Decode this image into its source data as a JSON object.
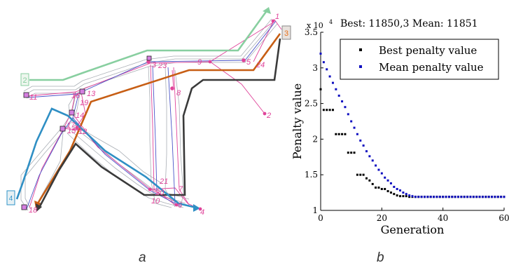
{
  "panel_labels": {
    "a": "a",
    "b": "b"
  },
  "diagram": {
    "zones": [
      {
        "label": "2",
        "color": "#88cfa0"
      },
      {
        "label": "3",
        "color": "#e8701a"
      },
      {
        "label": "4",
        "color": "#2f93c8"
      }
    ],
    "route_colors": {
      "green": "#88cfa0",
      "orange": "#c75e14",
      "dark": "#3a3a3a",
      "blue": "#2f8fc4"
    },
    "node_labels": [
      "1",
      "2",
      "3",
      "4",
      "5",
      "6",
      "7",
      "8",
      "9",
      "10",
      "11",
      "12",
      "13",
      "14",
      "15",
      "16",
      "17",
      "18",
      "19",
      "20",
      "21",
      "22",
      "23",
      "24"
    ]
  },
  "chart_data": {
    "type": "scatter",
    "header": "Best: 11850,3 Mean: 11851",
    "exponent_label": "x 10",
    "exponent_power": "4",
    "xlabel": "Generation",
    "ylabel": "Penalty value",
    "xlim": [
      0,
      60
    ],
    "ylim": [
      1,
      3.5
    ],
    "xticks": [
      "0",
      "20",
      "40",
      "60"
    ],
    "yticks": [
      "1",
      "1.5",
      "2",
      "2.5",
      "3",
      "3.5"
    ],
    "legend_position": "top-right",
    "series": [
      {
        "name": "Best penalty value",
        "color": "#000000",
        "x": [
          0,
          1,
          2,
          3,
          4,
          5,
          6,
          7,
          8,
          9,
          10,
          11,
          12,
          13,
          14,
          15,
          16,
          17,
          18,
          19,
          20,
          21,
          22,
          23,
          24,
          25,
          26,
          27,
          28,
          29,
          30,
          31,
          32,
          33,
          34,
          35,
          36,
          37,
          38,
          39,
          40,
          41,
          42,
          43,
          44,
          45,
          46,
          47,
          48,
          49,
          50,
          51,
          52,
          53,
          54,
          55,
          56,
          57,
          58,
          59,
          60
        ],
        "values": [
          2.7,
          2.41,
          2.41,
          2.41,
          2.41,
          2.07,
          2.07,
          2.07,
          2.07,
          1.81,
          1.81,
          1.81,
          1.5,
          1.5,
          1.5,
          1.45,
          1.42,
          1.37,
          1.32,
          1.32,
          1.3,
          1.3,
          1.27,
          1.25,
          1.23,
          1.21,
          1.2,
          1.2,
          1.2,
          1.19,
          1.19,
          1.19,
          1.19,
          1.19,
          1.19,
          1.19,
          1.19,
          1.19,
          1.19,
          1.19,
          1.19,
          1.19,
          1.19,
          1.19,
          1.19,
          1.19,
          1.19,
          1.19,
          1.19,
          1.19,
          1.19,
          1.19,
          1.19,
          1.19,
          1.19,
          1.19,
          1.19,
          1.19,
          1.19,
          1.19,
          1.19
        ]
      },
      {
        "name": "Mean penalty value",
        "color": "#1010c0",
        "x": [
          0,
          1,
          2,
          3,
          4,
          5,
          6,
          7,
          8,
          9,
          10,
          11,
          12,
          13,
          14,
          15,
          16,
          17,
          18,
          19,
          20,
          21,
          22,
          23,
          24,
          25,
          26,
          27,
          28,
          29,
          30,
          31,
          32,
          33,
          34,
          35,
          36,
          37,
          38,
          39,
          40,
          41,
          42,
          43,
          44,
          45,
          46,
          47,
          48,
          49,
          50,
          51,
          52,
          53,
          54,
          55,
          56,
          57,
          58,
          59,
          60
        ],
        "values": [
          3.2,
          3.08,
          2.98,
          2.88,
          2.79,
          2.7,
          2.61,
          2.53,
          2.45,
          2.35,
          2.25,
          2.16,
          2.07,
          1.98,
          1.91,
          1.83,
          1.76,
          1.7,
          1.63,
          1.57,
          1.52,
          1.46,
          1.42,
          1.38,
          1.33,
          1.3,
          1.28,
          1.25,
          1.23,
          1.21,
          1.2,
          1.19,
          1.19,
          1.19,
          1.19,
          1.19,
          1.19,
          1.19,
          1.19,
          1.19,
          1.19,
          1.19,
          1.19,
          1.19,
          1.19,
          1.19,
          1.19,
          1.19,
          1.19,
          1.19,
          1.19,
          1.19,
          1.19,
          1.19,
          1.19,
          1.19,
          1.19,
          1.19,
          1.19,
          1.19,
          1.19
        ]
      }
    ]
  }
}
